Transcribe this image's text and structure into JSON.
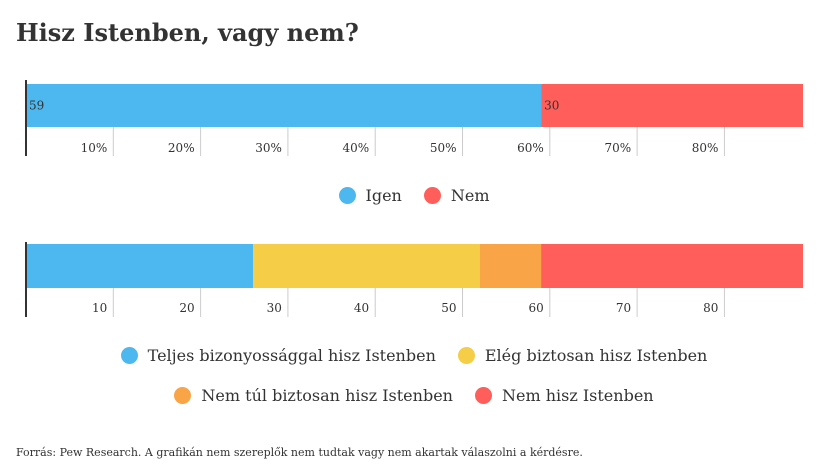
{
  "title": "Hisz Istenben, vagy nem?",
  "source": "Forrás: Pew Research. A grafikán nem szereplők nem tudtak vagy nem akartak válaszolni a kérdésre.",
  "colors": {
    "blue": "#4db8f0",
    "red": "#ff5e5b",
    "yellow": "#f5cd47",
    "orange": "#f9a446",
    "axis": "#333333",
    "tick": "#cccccc"
  },
  "chart_data": [
    {
      "type": "bar",
      "orientation": "horizontal-stacked",
      "series": [
        {
          "name": "Igen",
          "values": [
            59
          ],
          "color": "#4db8f0"
        },
        {
          "name": "Nem",
          "values": [
            30
          ],
          "color": "#ff5e5b"
        }
      ],
      "data_labels": [
        "59",
        "30"
      ],
      "xlim": [
        0,
        89
      ],
      "ticks": [
        10,
        20,
        30,
        40,
        50,
        60,
        70,
        80
      ],
      "tick_labels": [
        "10%",
        "20%",
        "30%",
        "40%",
        "50%",
        "60%",
        "70%",
        "80%"
      ],
      "legend": "bottom-center"
    },
    {
      "type": "bar",
      "orientation": "horizontal-stacked",
      "series": [
        {
          "name": "Teljes bizonyossággal hisz Istenben",
          "values": [
            26
          ],
          "color": "#4db8f0"
        },
        {
          "name": "Elég biztosan hisz Istenben",
          "values": [
            26
          ],
          "color": "#f5cd47"
        },
        {
          "name": "Nem túl biztosan hisz Istenben",
          "values": [
            7
          ],
          "color": "#f9a446"
        },
        {
          "name": "Nem hisz Istenben",
          "values": [
            30
          ],
          "color": "#ff5e5b"
        }
      ],
      "xlim": [
        0,
        89
      ],
      "ticks": [
        10,
        20,
        30,
        40,
        50,
        60,
        70,
        80
      ],
      "tick_labels": [
        "10",
        "20",
        "30",
        "40",
        "50",
        "60",
        "70",
        "80"
      ],
      "legend": "bottom-center"
    }
  ]
}
